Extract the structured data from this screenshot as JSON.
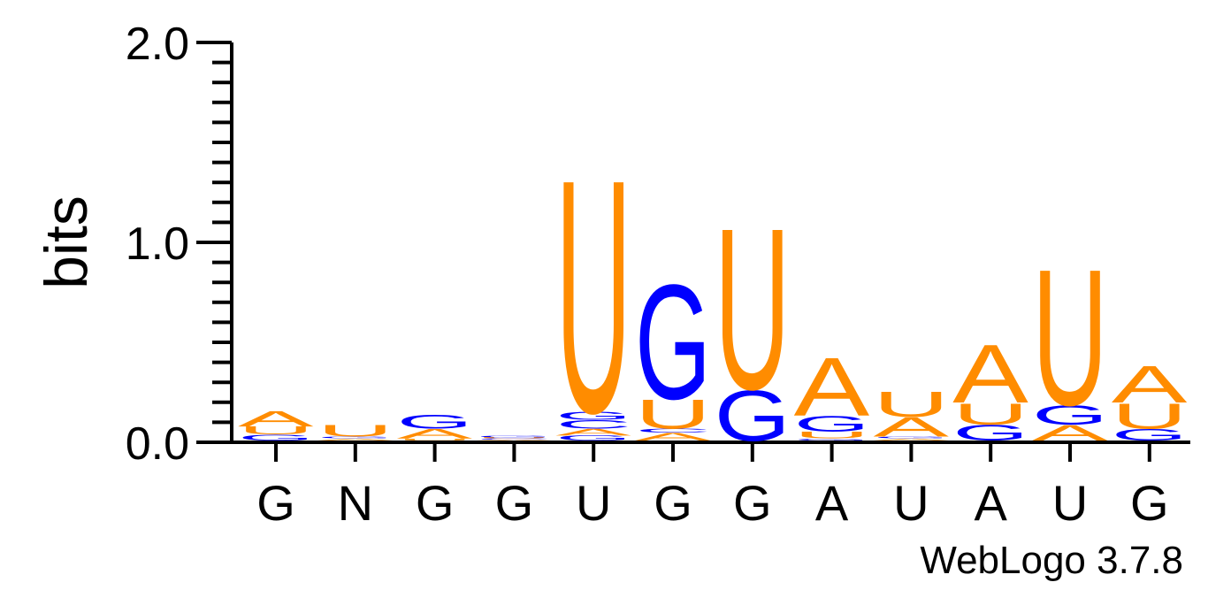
{
  "chart_data": {
    "type": "sequence-logo",
    "ylabel": "bits",
    "ylim": [
      0.0,
      2.0
    ],
    "yticks": [
      "0.0",
      "1.0",
      "2.0"
    ],
    "credit": "WebLogo 3.7.8",
    "colors": {
      "U": "#ff8c00",
      "A": "#ff8c00",
      "G": "#0000ff",
      "C": "#0000ff"
    },
    "consensus": [
      "G",
      "N",
      "G",
      "G",
      "U",
      "G",
      "G",
      "A",
      "U",
      "A",
      "U",
      "G"
    ],
    "positions": [
      {
        "consensus": "G",
        "stack": [
          {
            "letter": "G",
            "height": 0.03
          },
          {
            "letter": "U",
            "height": 0.04
          },
          {
            "letter": "A",
            "height": 0.08
          }
        ]
      },
      {
        "consensus": "N",
        "stack": [
          {
            "letter": "A",
            "height": 0.01
          },
          {
            "letter": "G",
            "height": 0.01
          },
          {
            "letter": "U",
            "height": 0.06
          }
        ]
      },
      {
        "consensus": "G",
        "stack": [
          {
            "letter": "U",
            "height": 0.01
          },
          {
            "letter": "A",
            "height": 0.05
          },
          {
            "letter": "G",
            "height": 0.07
          }
        ]
      },
      {
        "consensus": "G",
        "stack": [
          {
            "letter": "A",
            "height": 0.005
          },
          {
            "letter": "C",
            "height": 0.005
          },
          {
            "letter": "U",
            "height": 0.005
          },
          {
            "letter": "G",
            "height": 0.01
          }
        ]
      },
      {
        "consensus": "U",
        "stack": [
          {
            "letter": "G",
            "height": 0.025
          },
          {
            "letter": "A",
            "height": 0.035
          },
          {
            "letter": "C",
            "height": 0.045
          },
          {
            "letter": "G",
            "height": 0.04
          },
          {
            "letter": "U",
            "height": 1.2
          }
        ]
      },
      {
        "consensus": "G",
        "stack": [
          {
            "letter": "A",
            "height": 0.04
          },
          {
            "letter": "C",
            "height": 0.02
          },
          {
            "letter": "U",
            "height": 0.15
          },
          {
            "letter": "G",
            "height": 0.59
          }
        ]
      },
      {
        "consensus": "G",
        "stack": [
          {
            "letter": "G",
            "height": 0.26
          },
          {
            "letter": "U",
            "height": 0.83
          }
        ]
      },
      {
        "consensus": "A",
        "stack": [
          {
            "letter": "G",
            "height": 0.01
          },
          {
            "letter": "U",
            "height": 0.035
          },
          {
            "letter": "G",
            "height": 0.08
          },
          {
            "letter": "A",
            "height": 0.3
          }
        ]
      },
      {
        "consensus": "U",
        "stack": [
          {
            "letter": "A",
            "height": 0.01
          },
          {
            "letter": "G",
            "height": 0.01
          },
          {
            "letter": "A",
            "height": 0.1
          },
          {
            "letter": "U",
            "height": 0.13
          }
        ]
      },
      {
        "consensus": "A",
        "stack": [
          {
            "letter": "G",
            "height": 0.08
          },
          {
            "letter": "U",
            "height": 0.11
          },
          {
            "letter": "A",
            "height": 0.3
          }
        ]
      },
      {
        "consensus": "U",
        "stack": [
          {
            "letter": "A",
            "height": 0.08
          },
          {
            "letter": "G",
            "height": 0.1
          },
          {
            "letter": "U",
            "height": 0.7
          }
        ]
      },
      {
        "consensus": "G",
        "stack": [
          {
            "letter": "G",
            "height": 0.06
          },
          {
            "letter": "U",
            "height": 0.13
          },
          {
            "letter": "A",
            "height": 0.19
          }
        ]
      }
    ]
  }
}
